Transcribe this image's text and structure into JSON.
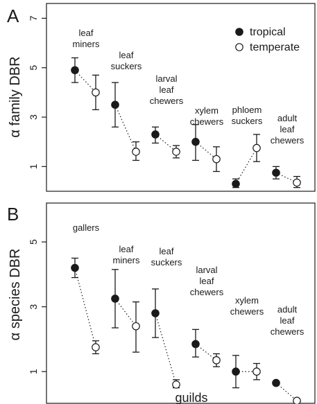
{
  "chart_data": [
    {
      "type": "scatter",
      "panel": "A",
      "ylabel": "α family DBR",
      "ylim": [
        0,
        7.6
      ],
      "yticks": [
        "1",
        "3",
        "5",
        "7"
      ],
      "legend": {
        "placement": "top-right",
        "entries": [
          {
            "name": "tropical",
            "marker": "filled-circle"
          },
          {
            "name": "temperate",
            "marker": "open-circle"
          }
        ]
      },
      "guilds": [
        {
          "label": [
            "leaf",
            "miners"
          ],
          "tropical": {
            "y": 4.9,
            "lo": 4.4,
            "hi": 5.4
          },
          "temperate": {
            "y": 4.0,
            "lo": 3.3,
            "hi": 4.7
          }
        },
        {
          "label": [
            "leaf",
            "suckers"
          ],
          "tropical": {
            "y": 3.5,
            "lo": 2.6,
            "hi": 4.4
          },
          "temperate": {
            "y": 1.6,
            "lo": 1.25,
            "hi": 2.0
          }
        },
        {
          "label": [
            "larval",
            "leaf",
            "chewers"
          ],
          "tropical": {
            "y": 2.3,
            "lo": 1.95,
            "hi": 2.6
          },
          "temperate": {
            "y": 1.6,
            "lo": 1.35,
            "hi": 1.85
          }
        },
        {
          "label": [
            "xylem",
            "chewers"
          ],
          "tropical": {
            "y": 2.0,
            "lo": 1.25,
            "hi": 2.7
          },
          "temperate": {
            "y": 1.3,
            "lo": 0.8,
            "hi": 1.8
          }
        },
        {
          "label": [
            "phloem",
            "suckers"
          ],
          "tropical": {
            "y": 0.3,
            "lo": 0.15,
            "hi": 0.5
          },
          "temperate": {
            "y": 1.75,
            "lo": 1.2,
            "hi": 2.3
          }
        },
        {
          "label": [
            "adult",
            "leaf",
            "chewers"
          ],
          "tropical": {
            "y": 0.75,
            "lo": 0.5,
            "hi": 1.0
          },
          "temperate": {
            "y": 0.35,
            "lo": 0.15,
            "hi": 0.6
          }
        }
      ]
    },
    {
      "type": "scatter",
      "panel": "B",
      "ylabel": "α species DBR",
      "ylim": [
        0,
        6.2
      ],
      "yticks": [
        "1",
        "3",
        "5"
      ],
      "guilds": [
        {
          "label": [
            "gallers"
          ],
          "tropical": {
            "y": 4.2,
            "lo": 3.9,
            "hi": 4.5
          },
          "temperate": {
            "y": 1.75,
            "lo": 1.55,
            "hi": 1.95
          }
        },
        {
          "label": [
            "leaf",
            "miners"
          ],
          "tropical": {
            "y": 3.25,
            "lo": 2.35,
            "hi": 4.15
          },
          "temperate": {
            "y": 2.4,
            "lo": 1.6,
            "hi": 3.15
          }
        },
        {
          "label": [
            "leaf",
            "suckers"
          ],
          "tropical": {
            "y": 2.8,
            "lo": 2.05,
            "hi": 3.55
          },
          "temperate": {
            "y": 0.6,
            "lo": 0.5,
            "hi": 0.75
          }
        },
        {
          "label": [
            "larval",
            "leaf",
            "chewers"
          ],
          "tropical": {
            "y": 1.85,
            "lo": 1.45,
            "hi": 2.3
          },
          "temperate": {
            "y": 1.35,
            "lo": 1.15,
            "hi": 1.55
          }
        },
        {
          "label": [
            "xylem",
            "chewers"
          ],
          "tropical": {
            "y": 1.0,
            "lo": 0.5,
            "hi": 1.5
          },
          "temperate": {
            "y": 1.0,
            "lo": 0.75,
            "hi": 1.25
          }
        },
        {
          "label": [
            "adult",
            "leaf",
            "chewers"
          ],
          "tropical": {
            "y": 0.65,
            "lo": 0.6,
            "hi": 0.7
          },
          "temperate": {
            "y": 0.1,
            "lo": 0.05,
            "hi": 0.15
          }
        }
      ]
    }
  ],
  "xlabel": "guilds"
}
